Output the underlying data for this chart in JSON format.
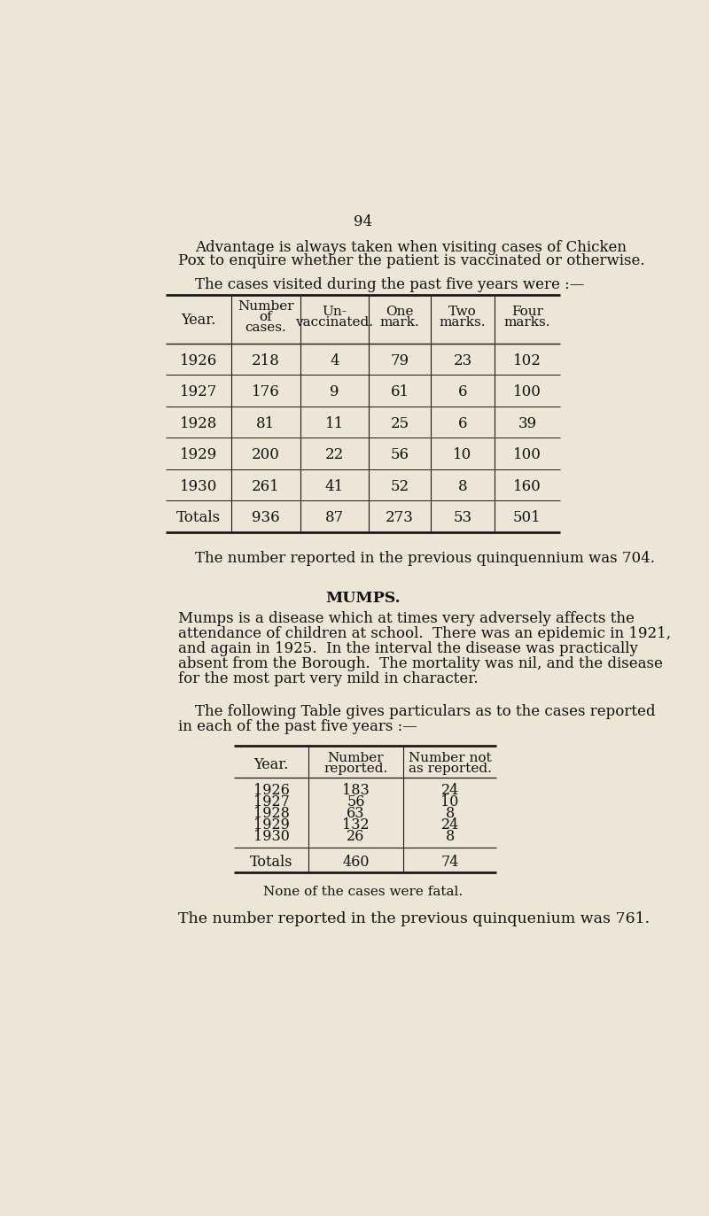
{
  "bg_color": "#ede5d5",
  "page_number": "94",
  "para1_line1": "Advantage is always taken when visiting cases of Chicken",
  "para1_line2": "Pox to enquire whether the patient is vaccinated or otherwise.",
  "para1_intro": "The cases visited during the past five years were :—",
  "table1_col_headers_line1": [
    "Year.",
    "Number",
    "Un-",
    "One",
    "Two",
    "Four"
  ],
  "table1_col_headers_line2": [
    "",
    "of",
    "vaccinated.",
    "mark.",
    "marks.",
    "marks."
  ],
  "table1_col_headers_line3": [
    "",
    "cases.",
    "",
    "",
    "",
    ""
  ],
  "table1_data": [
    [
      "1926",
      "218",
      "4",
      "79",
      "23",
      "102"
    ],
    [
      "1927",
      "176",
      "9",
      "61",
      "6",
      "100"
    ],
    [
      "1928",
      "81",
      "11",
      "25",
      "6",
      "39"
    ],
    [
      "1929",
      "200",
      "22",
      "56",
      "10",
      "100"
    ],
    [
      "1930",
      "261",
      "41",
      "52",
      "8",
      "160"
    ]
  ],
  "table1_totals": [
    "Totals",
    "936",
    "87",
    "273",
    "53",
    "501"
  ],
  "para2": "The number reported in the previous quinquennium was 704.",
  "mumps_heading": "MUMPS.",
  "mumps_lines": [
    "Mumps is a disease which at times very adversely affects the",
    "attendance of children at school.  There was an epidemic in 1921,",
    "and again in 1925.  In the interval the disease was practically",
    "absent from the Borough.  The mortality was nil, and the disease",
    "for the most part very mild in character."
  ],
  "para3_line1": "The following Table gives particulars as to the cases reported",
  "para3_line2": "in each of the past five years :—",
  "table2_hdr1": [
    "Year.",
    "Number",
    "Number not"
  ],
  "table2_hdr2": [
    "",
    "reported.",
    "as reported."
  ],
  "table2_data": [
    [
      "1926",
      "183",
      "24"
    ],
    [
      "1927",
      "56",
      "10"
    ],
    [
      "1928",
      "63",
      "8"
    ],
    [
      "1929",
      "132",
      "24"
    ],
    [
      "1930",
      "26",
      "8"
    ]
  ],
  "table2_totals": [
    "Totals",
    "460",
    "74"
  ],
  "para4": "None of the cases were fatal.",
  "para5": "The number reported in the previous quinquenium was 761."
}
